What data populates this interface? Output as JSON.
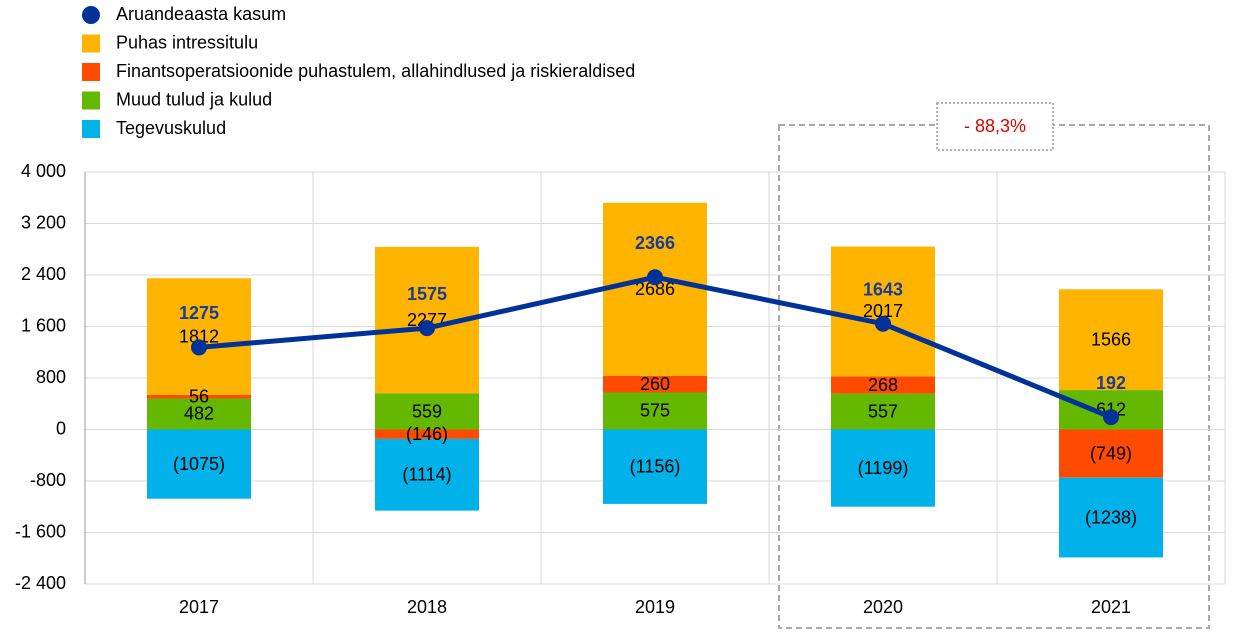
{
  "chart_data": {
    "type": "bar",
    "categories": [
      "2017",
      "2018",
      "2019",
      "2020",
      "2021"
    ],
    "series": [
      {
        "name": "Aruandeaasta kasum",
        "type": "line",
        "color": "#003299",
        "values": [
          1275,
          1575,
          2366,
          1643,
          192
        ]
      },
      {
        "name": "Puhas intressitulu",
        "color": "#ffb400",
        "values": [
          1812,
          2277,
          2686,
          2017,
          1566
        ]
      },
      {
        "name": "Finantsoperatsioonide puhastulem, allahindlused ja riskieraldised",
        "color": "#ff4b00",
        "values": [
          56,
          -146,
          260,
          268,
          -749
        ],
        "value_labels": [
          "56",
          "(146)",
          "260",
          "268",
          "(749)"
        ]
      },
      {
        "name": "Muud tulud ja kulud",
        "color": "#65b800",
        "values": [
          482,
          559,
          575,
          557,
          612
        ]
      },
      {
        "name": "Tegevuskulud",
        "color": "#00b1ea",
        "values": [
          -1075,
          -1114,
          -1156,
          -1199,
          -1238
        ],
        "value_labels": [
          "(1075)",
          "(1114)",
          "(1156)",
          "(1199)",
          "(1238)"
        ]
      }
    ],
    "ylim": [
      -2400,
      4000
    ],
    "yticks": [
      {
        "value": -2400,
        "label": "-2 400"
      },
      {
        "value": -1600,
        "label": "-1 600"
      },
      -800,
      0,
      800,
      {
        "value": 1600,
        "label": "1 600"
      },
      {
        "value": 2400,
        "label": "2 400"
      },
      {
        "value": 3200,
        "label": "3 200"
      },
      {
        "value": 4000,
        "label": "4 000"
      }
    ],
    "grid": true,
    "annotations": [
      "- 88,3%"
    ]
  }
}
